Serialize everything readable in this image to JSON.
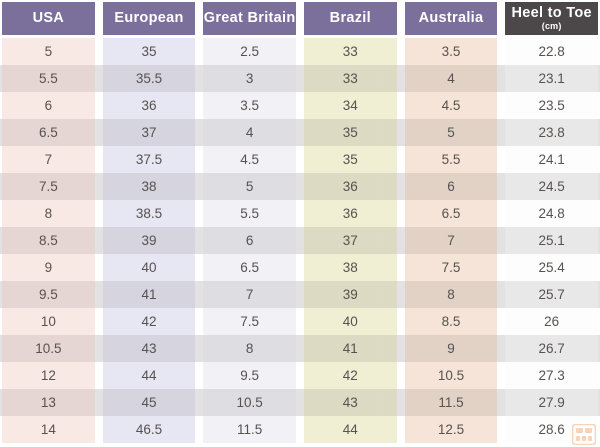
{
  "colors": {
    "header_purple": "#7b6f9b",
    "header_dark": "#4c4849",
    "col_usa_bg": "#f9e9e5",
    "col_european_bg": "#e7e6f3",
    "col_great_britain_bg": "#f1f1f6",
    "col_brazil_bg": "#f0eed3",
    "col_australia_bg": "#f5e4d7",
    "col_heel_to_toe_bg": "#fdfdfd",
    "even_row_tint": "#e4e1e2",
    "cell_text": "#575250",
    "watermark_orange": "#f0a368"
  },
  "chart_data": {
    "type": "table",
    "columns": [
      {
        "key": "usa",
        "label": "USA"
      },
      {
        "key": "european",
        "label": "European"
      },
      {
        "key": "great_britain",
        "label": "Great Britain"
      },
      {
        "key": "brazil",
        "label": "Brazil"
      },
      {
        "key": "australia",
        "label": "Australia"
      },
      {
        "key": "heel_to_toe",
        "label": "Heel to Toe",
        "sublabel": "(cm)"
      }
    ],
    "rows": [
      [
        5,
        35,
        2.5,
        33,
        3.5,
        22.8
      ],
      [
        5.5,
        35.5,
        3,
        33,
        4,
        23.1
      ],
      [
        6,
        36,
        3.5,
        34,
        4.5,
        23.5
      ],
      [
        6.5,
        37,
        4,
        35,
        5,
        23.8
      ],
      [
        7,
        37.5,
        4.5,
        35,
        5.5,
        24.1
      ],
      [
        7.5,
        38,
        5,
        36,
        6,
        24.5
      ],
      [
        8,
        38.5,
        5.5,
        36,
        6.5,
        24.8
      ],
      [
        8.5,
        39,
        6,
        37,
        7,
        25.1
      ],
      [
        9,
        40,
        6.5,
        38,
        7.5,
        25.4
      ],
      [
        9.5,
        41,
        7,
        39,
        8,
        25.7
      ],
      [
        10,
        42,
        7.5,
        40,
        8.5,
        26
      ],
      [
        10.5,
        43,
        8,
        41,
        9,
        26.7
      ],
      [
        12,
        44,
        9.5,
        42,
        10.5,
        27.3
      ],
      [
        13,
        45,
        10.5,
        43,
        11.5,
        27.9
      ],
      [
        14,
        46.5,
        11.5,
        44,
        12.5,
        28.6
      ]
    ]
  }
}
